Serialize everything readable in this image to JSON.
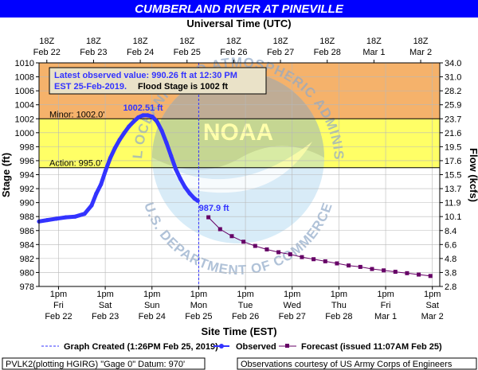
{
  "title": "CUMBERLAND RIVER AT PINEVILLE",
  "top_axis_label": "Universal Time (UTC)",
  "bottom_axis_label": "Site Time (EST)",
  "left_axis_label": "Stage (ft)",
  "right_axis_label": "Flow (kcfs)",
  "info_box": {
    "line1": "Latest observed value: 990.26 ft at 12:30 PM",
    "line2_blue": "EST 25-Feb-2019.",
    "line2_black": "Flood Stage is 1002 ft"
  },
  "watermark": {
    "arc_top": "NATIONAL OCEANIC AND ATMOSPHERIC ADMINISTRATION",
    "arc_bottom": "U.S. DEPARTMENT OF COMMERCE",
    "logo": "NOAA"
  },
  "legend": {
    "graph_created": "Graph Created (1:26PM Feb 25, 2019)",
    "observed": "Observed",
    "forecast": "Forecast (issued 11:07AM Feb 25)"
  },
  "footer": {
    "left": "PVLK2(plotting HGIRG) \"Gage 0\" Datum: 970'",
    "right": "Observations courtesy of US Army Corps of Engineers"
  },
  "colors": {
    "title_bg": "#0000ff",
    "moderate_band": "#f5b26b",
    "minor_band": "#ffff66",
    "action_band": "#ffff99",
    "observed": "#3333ff",
    "forecast": "#660066",
    "now_line": "#3333ff"
  },
  "chart_data": {
    "type": "line",
    "x_unit": "days since Feb 22 00:00 EST",
    "ylim": [
      978,
      1010
    ],
    "y_ticks": [
      978,
      980,
      982,
      984,
      986,
      988,
      990,
      992,
      994,
      996,
      998,
      1000,
      1002,
      1004,
      1006,
      1008,
      1010
    ],
    "flow_ticks": [
      "2.8",
      "3.8",
      "4.8",
      "6.6",
      "8.4",
      "10.1",
      "11.9",
      "13.7",
      "15.5",
      "17.6",
      "19.5",
      "21.6",
      "23.7",
      "25.9",
      "28.2",
      "31.0",
      "34.0"
    ],
    "bottom_ticks": [
      {
        "x": 0.5417,
        "l1": "1pm",
        "l2": "Fri",
        "l3": "Feb 22"
      },
      {
        "x": 1.5417,
        "l1": "1pm",
        "l2": "Sat",
        "l3": "Feb 23"
      },
      {
        "x": 2.5417,
        "l1": "1pm",
        "l2": "Sun",
        "l3": "Feb 24"
      },
      {
        "x": 3.5417,
        "l1": "1pm",
        "l2": "Mon",
        "l3": "Feb 25"
      },
      {
        "x": 4.5417,
        "l1": "1pm",
        "l2": "Tue",
        "l3": "Feb 26"
      },
      {
        "x": 5.5417,
        "l1": "1pm",
        "l2": "Wed",
        "l3": "Feb 27"
      },
      {
        "x": 6.5417,
        "l1": "1pm",
        "l2": "Thu",
        "l3": "Feb 28"
      },
      {
        "x": 7.5417,
        "l1": "1pm",
        "l2": "Fri",
        "l3": "Mar 1"
      },
      {
        "x": 8.5417,
        "l1": "1pm",
        "l2": "Sat",
        "l3": "Mar 2"
      }
    ],
    "top_ticks": [
      {
        "x": 0.2917,
        "l1": "18Z",
        "l2": "Feb 22"
      },
      {
        "x": 1.2917,
        "l1": "18Z",
        "l2": "Feb 23"
      },
      {
        "x": 2.2917,
        "l1": "18Z",
        "l2": "Feb 24"
      },
      {
        "x": 3.2917,
        "l1": "18Z",
        "l2": "Feb 25"
      },
      {
        "x": 4.2917,
        "l1": "18Z",
        "l2": "Feb 26"
      },
      {
        "x": 5.2917,
        "l1": "18Z",
        "l2": "Feb 27"
      },
      {
        "x": 6.2917,
        "l1": "18Z",
        "l2": "Feb 28"
      },
      {
        "x": 7.2917,
        "l1": "18Z",
        "l2": "Mar 1"
      },
      {
        "x": 8.2917,
        "l1": "18Z",
        "l2": "Mar 2"
      }
    ],
    "x_range": [
      0.125,
      8.7
    ],
    "bands": [
      {
        "name": "moderate",
        "from": 1002,
        "to": 1010,
        "color": "#f5b26b"
      },
      {
        "name": "minor",
        "from": 995,
        "to": 1002,
        "color": "#ffff66",
        "label": "Minor: 1002.0'"
      },
      {
        "name": "action",
        "from": 978,
        "to": 995,
        "color": "#ffffff",
        "label": "Action: 995.0'"
      }
    ],
    "thresholds": [
      {
        "value": 1002,
        "label": "Minor: 1002.0'"
      },
      {
        "value": 995,
        "label": "Action: 995.0'"
      }
    ],
    "now_x": 3.5417,
    "series": [
      {
        "name": "Observed",
        "color": "#3333ff",
        "x": [
          0.125,
          0.3,
          0.5,
          0.7,
          0.9,
          1.1,
          1.25,
          1.35,
          1.45,
          1.55,
          1.65,
          1.75,
          1.85,
          1.95,
          2.05,
          2.15,
          2.25,
          2.35,
          2.45,
          2.55,
          2.65,
          2.75,
          2.85,
          2.95,
          3.05,
          3.15,
          3.25,
          3.35,
          3.45,
          3.5208
        ],
        "values": [
          987.3,
          987.5,
          987.7,
          987.9,
          988.0,
          988.4,
          989.6,
          991.3,
          992.6,
          994.6,
          996.4,
          997.8,
          999.0,
          1000.0,
          1000.9,
          1001.6,
          1002.2,
          1002.5,
          1002.5,
          1002.3,
          1001.6,
          1000.3,
          998.6,
          996.7,
          994.8,
          993.4,
          992.2,
          991.3,
          990.6,
          990.26
        ]
      },
      {
        "name": "Forecast",
        "color": "#660066",
        "x": [
          3.75,
          4.0,
          4.25,
          4.5,
          4.75,
          5.0,
          5.25,
          5.5,
          5.75,
          6.0,
          6.25,
          6.5,
          6.75,
          7.0,
          7.25,
          7.5,
          7.75,
          8.0,
          8.25,
          8.5
        ],
        "values": [
          987.9,
          986.2,
          985.2,
          984.4,
          983.8,
          983.3,
          982.9,
          982.6,
          982.2,
          981.9,
          981.6,
          981.3,
          981.0,
          980.8,
          980.5,
          980.3,
          980.1,
          979.9,
          979.7,
          979.5
        ]
      }
    ],
    "annotations": [
      {
        "x": 2.4,
        "y": 1002.51,
        "text": "1002.51 ft",
        "color": "#3333ff"
      },
      {
        "x": 3.75,
        "y": 987.9,
        "text": "987.9 ft",
        "color": "#3333ff"
      }
    ]
  }
}
